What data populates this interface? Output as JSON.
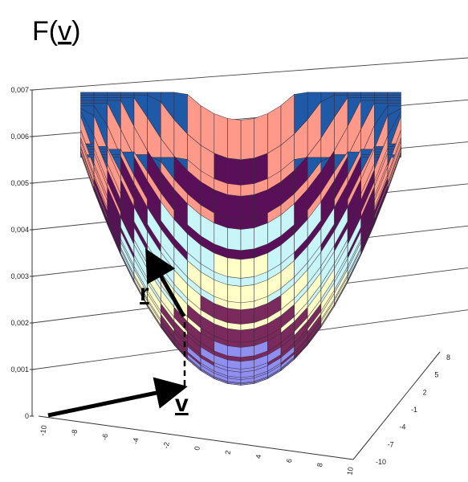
{
  "chart_data": {
    "type": "surface",
    "title": "F(v)",
    "title_parts": {
      "prefix": "F(",
      "var": "v",
      "suffix": ")"
    },
    "z_ticks": [
      "0",
      "0,001",
      "0,002",
      "0,003",
      "0,004",
      "0,005",
      "0,006",
      "0,007"
    ],
    "z_range": [
      0,
      0.007
    ],
    "x_ticks": [
      "-10",
      "-8",
      "-6",
      "-4",
      "-2",
      "0",
      "2",
      "4",
      "6",
      "8",
      "10"
    ],
    "x_range": [
      -10,
      10
    ],
    "y_ticks": [
      "-10",
      "-7",
      "-4",
      "-1",
      "2",
      "5",
      "8"
    ],
    "y_range": [
      -10,
      8
    ],
    "grid": true,
    "surface_shape": "bowl",
    "band_colors": [
      "#8f8ff0",
      "#7a2a5c",
      "#ffffc8",
      "#c8f5f8",
      "#5a1058",
      "#ff9a8a",
      "#1e5aa8"
    ],
    "mesh_color": "#3a2a3a",
    "annotations": {
      "vector_v": {
        "label": "v",
        "from": [
          -10,
          -10,
          0
        ],
        "to": [
          0,
          0,
          0
        ]
      },
      "vector_r": {
        "label": "r",
        "from": [
          0,
          0,
          0.002
        ],
        "to": [
          -4,
          0,
          0.0038
        ]
      },
      "drop_line": {
        "style": "dashed",
        "from": [
          0,
          0,
          0
        ],
        "to": [
          0,
          0,
          0.002
        ]
      }
    }
  }
}
